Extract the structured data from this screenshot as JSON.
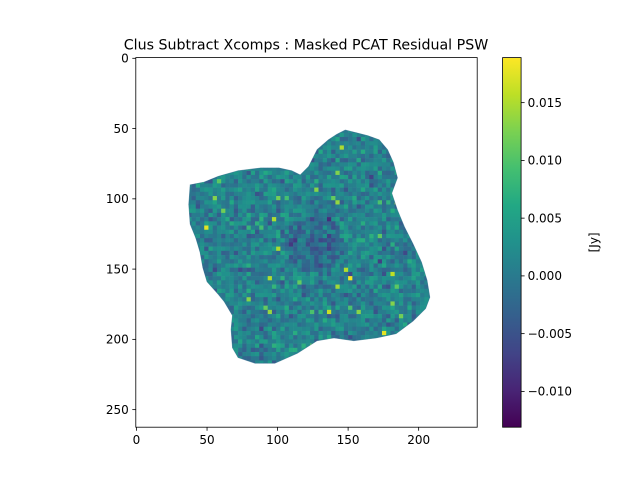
{
  "chart_data": {
    "type": "heatmap",
    "title": "Clus Subtract Xcomps : Masked PCAT Residual PSW",
    "xlabel": "",
    "ylabel": "",
    "image_extent_x": [
      -0.5,
      241.5
    ],
    "image_extent_y": [
      262.5,
      -0.5
    ],
    "xticks": [
      0,
      50,
      100,
      150,
      200
    ],
    "xtick_labels": [
      "0",
      "50",
      "100",
      "150",
      "200"
    ],
    "yticks": [
      0,
      50,
      100,
      150,
      200,
      250
    ],
    "ytick_labels": [
      "0",
      "50",
      "100",
      "150",
      "200",
      "250"
    ],
    "grid": false,
    "colormap": "viridis",
    "colorbar": {
      "label": "[Jy]",
      "range": [
        -0.0131,
        0.0189
      ],
      "ticks": [
        -0.01,
        -0.005,
        0.0,
        0.005,
        0.01,
        0.015
      ],
      "tick_labels": [
        "−0.010",
        "−0.005",
        "0.000",
        "0.005",
        "0.010",
        "0.015"
      ]
    },
    "masked_region_outline": [
      [
        38,
        90
      ],
      [
        48,
        88
      ],
      [
        58,
        84
      ],
      [
        72,
        80
      ],
      [
        88,
        78
      ],
      [
        101,
        78
      ],
      [
        110,
        80
      ],
      [
        116,
        83
      ],
      [
        122,
        77
      ],
      [
        128,
        65
      ],
      [
        136,
        58
      ],
      [
        142,
        54
      ],
      [
        148,
        51
      ],
      [
        156,
        53
      ],
      [
        164,
        55
      ],
      [
        172,
        58
      ],
      [
        178,
        65
      ],
      [
        182,
        74
      ],
      [
        185,
        85
      ],
      [
        181,
        96
      ],
      [
        185,
        108
      ],
      [
        190,
        120
      ],
      [
        196,
        132
      ],
      [
        202,
        145
      ],
      [
        206,
        158
      ],
      [
        208,
        170
      ],
      [
        205,
        178
      ],
      [
        196,
        187
      ],
      [
        184,
        196
      ],
      [
        170,
        199
      ],
      [
        154,
        201
      ],
      [
        140,
        199
      ],
      [
        128,
        201
      ],
      [
        114,
        210
      ],
      [
        98,
        217
      ],
      [
        84,
        217
      ],
      [
        72,
        213
      ],
      [
        68,
        206
      ],
      [
        67,
        193
      ],
      [
        68,
        183
      ],
      [
        62,
        173
      ],
      [
        58,
        168
      ],
      [
        50,
        159
      ],
      [
        47,
        149
      ],
      [
        45,
        138
      ],
      [
        42,
        128
      ],
      [
        38,
        118
      ],
      [
        37,
        104
      ]
    ]
  }
}
